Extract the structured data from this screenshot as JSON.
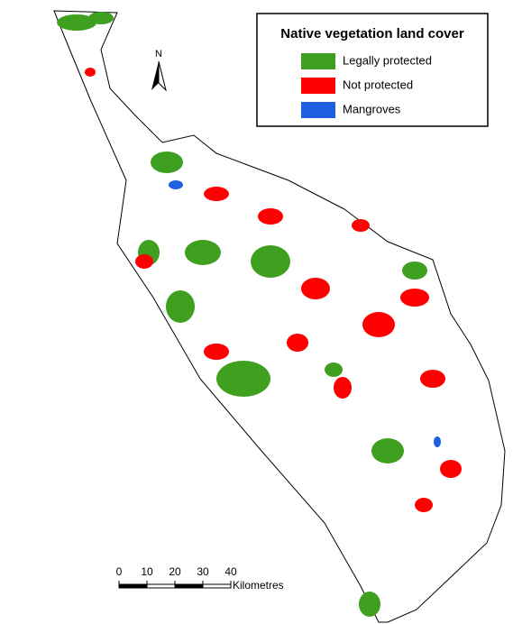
{
  "legend": {
    "title": "Native vegetation land cover",
    "items": [
      {
        "label": "Legally protected",
        "color": "#3f9f1f"
      },
      {
        "label": "Not protected",
        "color": "#ff0000"
      },
      {
        "label": "Mangroves",
        "color": "#1f5fe0"
      }
    ]
  },
  "north_arrow": {
    "label": "N"
  },
  "scale_bar": {
    "ticks": [
      0,
      10,
      20,
      30,
      40
    ],
    "unit": "Kilometres"
  }
}
